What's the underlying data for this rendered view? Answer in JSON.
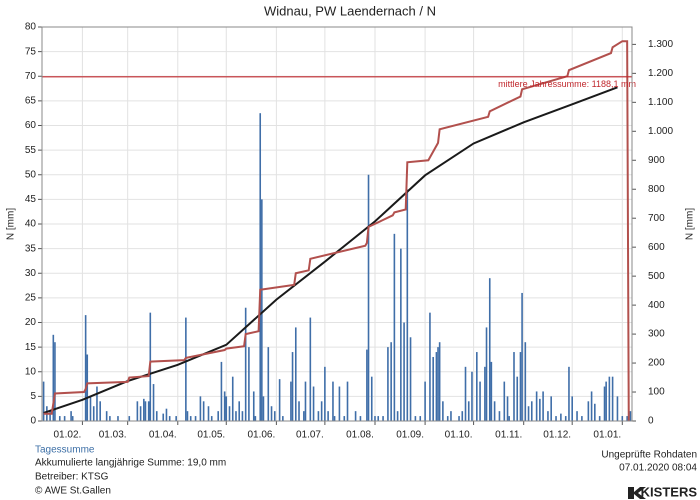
{
  "chart_data": {
    "type": "bar",
    "title": "Widnau, PW Laendernach / N",
    "ylabel": "N [mm]",
    "y2label": "N [mm]",
    "xlim": [
      6,
      371
    ],
    "xticks": [
      {
        "value": 31,
        "label": "01.02."
      },
      {
        "value": 59,
        "label": "01.03."
      },
      {
        "value": 90,
        "label": "01.04."
      },
      {
        "value": 120,
        "label": "01.05."
      },
      {
        "value": 151,
        "label": "01.06."
      },
      {
        "value": 181,
        "label": "01.07."
      },
      {
        "value": 212,
        "label": "01.08."
      },
      {
        "value": 243,
        "label": "01.09."
      },
      {
        "value": 273,
        "label": "01.10."
      },
      {
        "value": 304,
        "label": "01.11."
      },
      {
        "value": 334,
        "label": "01.12."
      },
      {
        "value": 365,
        "label": "01.01."
      }
    ],
    "ylim": [
      0,
      80
    ],
    "yticks": [
      0,
      5,
      10,
      15,
      20,
      25,
      30,
      35,
      40,
      45,
      50,
      55,
      60,
      65,
      70,
      75,
      80
    ],
    "y2lim": [
      0,
      1360
    ],
    "y2ticks": [
      0,
      100,
      200,
      300,
      400,
      500,
      600,
      700,
      800,
      900,
      {
        "value": 1000,
        "label": "1.000"
      },
      {
        "value": 1100,
        "label": "1.100"
      },
      {
        "value": 1200,
        "label": "1.200"
      },
      {
        "value": 1300,
        "label": "1.300"
      }
    ],
    "grid": true,
    "reference": {
      "value": 1188.1,
      "axis": "y2",
      "color": "#c0282d",
      "label": "mittlere Jahressumme: 1188,1 mm"
    },
    "series": [
      {
        "name": "Tagessumme",
        "type": "bar",
        "color": "#3f6ea8",
        "x": [
          7,
          9,
          11,
          13,
          14,
          17,
          20,
          24,
          25,
          33,
          34,
          36,
          38,
          40,
          42,
          46,
          48,
          53,
          60,
          65,
          67,
          69,
          70,
          72,
          73,
          75,
          77,
          81,
          83,
          85,
          89,
          95,
          96,
          98,
          101,
          104,
          106,
          109,
          111,
          115,
          117,
          119,
          120,
          122,
          124,
          126,
          128,
          130,
          132,
          134,
          137,
          138,
          141,
          142,
          143,
          146,
          148,
          150,
          153,
          155,
          160,
          161,
          163,
          165,
          168,
          169,
          172,
          174,
          177,
          179,
          181,
          183,
          186,
          187,
          190,
          193,
          195,
          200,
          203,
          207,
          208,
          210,
          212,
          214,
          217,
          220,
          222,
          224,
          226,
          228,
          230,
          232,
          234,
          237,
          240,
          243,
          246,
          248,
          250,
          251,
          252,
          254,
          257,
          259,
          264,
          266,
          268,
          270,
          272,
          275,
          277,
          280,
          281,
          283,
          284,
          286,
          289,
          292,
          294,
          295,
          298,
          300,
          302,
          303,
          305,
          307,
          309,
          312,
          314,
          316,
          319,
          321,
          324,
          327,
          330,
          332,
          334,
          337,
          340,
          344,
          346,
          348,
          351,
          354,
          355,
          357,
          359,
          362,
          365,
          368,
          370
        ],
        "values": [
          8,
          3,
          2,
          17.5,
          16,
          1,
          1,
          2,
          1,
          21.5,
          13.5,
          5,
          3,
          7,
          4,
          2,
          1,
          1,
          1,
          4,
          3,
          4.5,
          4,
          4,
          22,
          7.5,
          2,
          1.5,
          2.5,
          1,
          1,
          21,
          2,
          1,
          1,
          5,
          4,
          3,
          1,
          2,
          12,
          6,
          5,
          3,
          9,
          2,
          4,
          2,
          23,
          15,
          6,
          1,
          62.5,
          45,
          5,
          15,
          3,
          2,
          8.5,
          1,
          8,
          14,
          19,
          4,
          2,
          8,
          21,
          7,
          2,
          4,
          11,
          2,
          8,
          1,
          7,
          1,
          8,
          2,
          1,
          14.5,
          50,
          9,
          1,
          1,
          1,
          15,
          16,
          38,
          2,
          35,
          20,
          47,
          17,
          1,
          1,
          8,
          22,
          13,
          14,
          15,
          16,
          4,
          1,
          2,
          1,
          2,
          11,
          4,
          10,
          14,
          8,
          11,
          19,
          29,
          12,
          4,
          2,
          8,
          5,
          1,
          14,
          9,
          14,
          26,
          16,
          3,
          4,
          6,
          4.5,
          6,
          2,
          5,
          1,
          1.5,
          1,
          11,
          5,
          2,
          1,
          4,
          6,
          3.5,
          1,
          7,
          8,
          9,
          9,
          5,
          1,
          1,
          2
        ]
      },
      {
        "type": "line",
        "axis": "y2",
        "color": "#1a1a1a",
        "x": [
          7,
          31,
          59,
          90,
          120,
          151,
          181,
          212,
          243,
          273,
          304,
          334,
          362
        ],
        "values": [
          28,
          73,
          138,
          194,
          263,
          419,
          550,
          689,
          848,
          958,
          1031,
          1093,
          1152
        ]
      },
      {
        "type": "line",
        "axis": "y2",
        "color": "#b2504d",
        "x": [
          7,
          12,
          13,
          14,
          32,
          33,
          34,
          59,
          60,
          72,
          73,
          94,
          95,
          119,
          120,
          131,
          132,
          140,
          141,
          162,
          163,
          171,
          172,
          206,
          207,
          208,
          223,
          224,
          231,
          232,
          245,
          246,
          251,
          252,
          282,
          283,
          302,
          303,
          331,
          332,
          358,
          359,
          365,
          368,
          369
        ],
        "values": [
          25,
          25,
          60,
          95,
          100,
          110,
          130,
          135,
          150,
          155,
          205,
          210,
          218,
          245,
          250,
          258,
          300,
          310,
          453,
          470,
          510,
          520,
          560,
          605,
          615,
          670,
          710,
          720,
          730,
          893,
          900,
          910,
          960,
          1007,
          1050,
          1069,
          1120,
          1145,
          1190,
          1211,
          1270,
          1290,
          1311,
          1311,
          0
        ]
      }
    ],
    "footer": {
      "legend": "Tagessumme",
      "accum": "Akkumulierte langjährige Summe: 19,0 mm",
      "operator": "Betreiber: KTSG",
      "copyright": "© AWE St.Gallen",
      "status": "Ungeprüfte Rohdaten",
      "timestamp": "07.01.2020 08:04",
      "logo": "KISTERS"
    }
  }
}
